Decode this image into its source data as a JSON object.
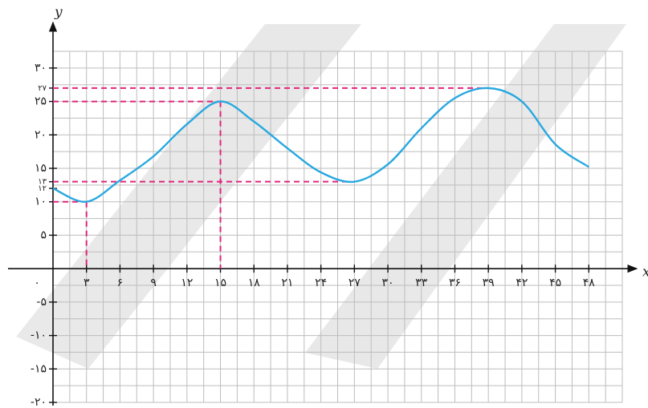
{
  "chart_data": {
    "type": "line",
    "x_label": "x",
    "y_label": "y",
    "x": [
      0,
      3,
      6,
      9,
      12,
      15,
      18,
      21,
      24,
      27,
      30,
      33,
      36,
      39,
      42,
      45,
      48
    ],
    "series": [
      {
        "color": "#29a8e0",
        "values": [
          12,
          10,
          13.2,
          16.8,
          21.6,
          25,
          22,
          18,
          14.4,
          13,
          15.6,
          21,
          25.5,
          27,
          25,
          18.6,
          15.2
        ]
      }
    ],
    "xlim": [
      0,
      51
    ],
    "ylim": [
      -20,
      32.5
    ],
    "xgrid_step": 1.5,
    "ygrid_step": 2.5,
    "grid": true,
    "xticks": [
      {
        "value": 0,
        "label": "۰"
      },
      {
        "value": 3,
        "label": "۳"
      },
      {
        "value": 6,
        "label": "۶"
      },
      {
        "value": 9,
        "label": "۹"
      },
      {
        "value": 12,
        "label": "۱۲"
      },
      {
        "value": 15,
        "label": "۱۵"
      },
      {
        "value": 18,
        "label": "۱۸"
      },
      {
        "value": 21,
        "label": "۲۱"
      },
      {
        "value": 24,
        "label": "۲۴"
      },
      {
        "value": 27,
        "label": "۲۷"
      },
      {
        "value": 30,
        "label": "۳۰"
      },
      {
        "value": 33,
        "label": "۳۳"
      },
      {
        "value": 36,
        "label": "۳۶"
      },
      {
        "value": 39,
        "label": "۳۹"
      },
      {
        "value": 42,
        "label": "۴۲"
      },
      {
        "value": 45,
        "label": "۴۵"
      },
      {
        "value": 48,
        "label": "۴۸"
      }
    ],
    "yticks": [
      {
        "value": 30,
        "label": "۳۰"
      },
      {
        "value": 27,
        "label": "۲۷"
      },
      {
        "value": 25,
        "label": "۲۵"
      },
      {
        "value": 20,
        "label": "۲۰"
      },
      {
        "value": 15,
        "label": "۱۵"
      },
      {
        "value": 13,
        "label": "۱۳"
      },
      {
        "value": 12,
        "label": "۱۲"
      },
      {
        "value": 10,
        "label": "۱۰"
      },
      {
        "value": 5,
        "label": "۵"
      },
      {
        "value": -5,
        "label": "-۵"
      },
      {
        "value": -10,
        "label": "-۱۰"
      },
      {
        "value": -15,
        "label": "-۱۵"
      },
      {
        "value": -20,
        "label": "-۲۰"
      }
    ],
    "guide_color": "#e0267c",
    "guides": [
      {
        "x": 3,
        "y": 10,
        "drop": true
      },
      {
        "x": 15,
        "y": 25,
        "drop": true
      },
      {
        "x": 26.5,
        "y": 13,
        "drop": false
      },
      {
        "x": 39,
        "y": 27,
        "drop": false
      }
    ]
  }
}
